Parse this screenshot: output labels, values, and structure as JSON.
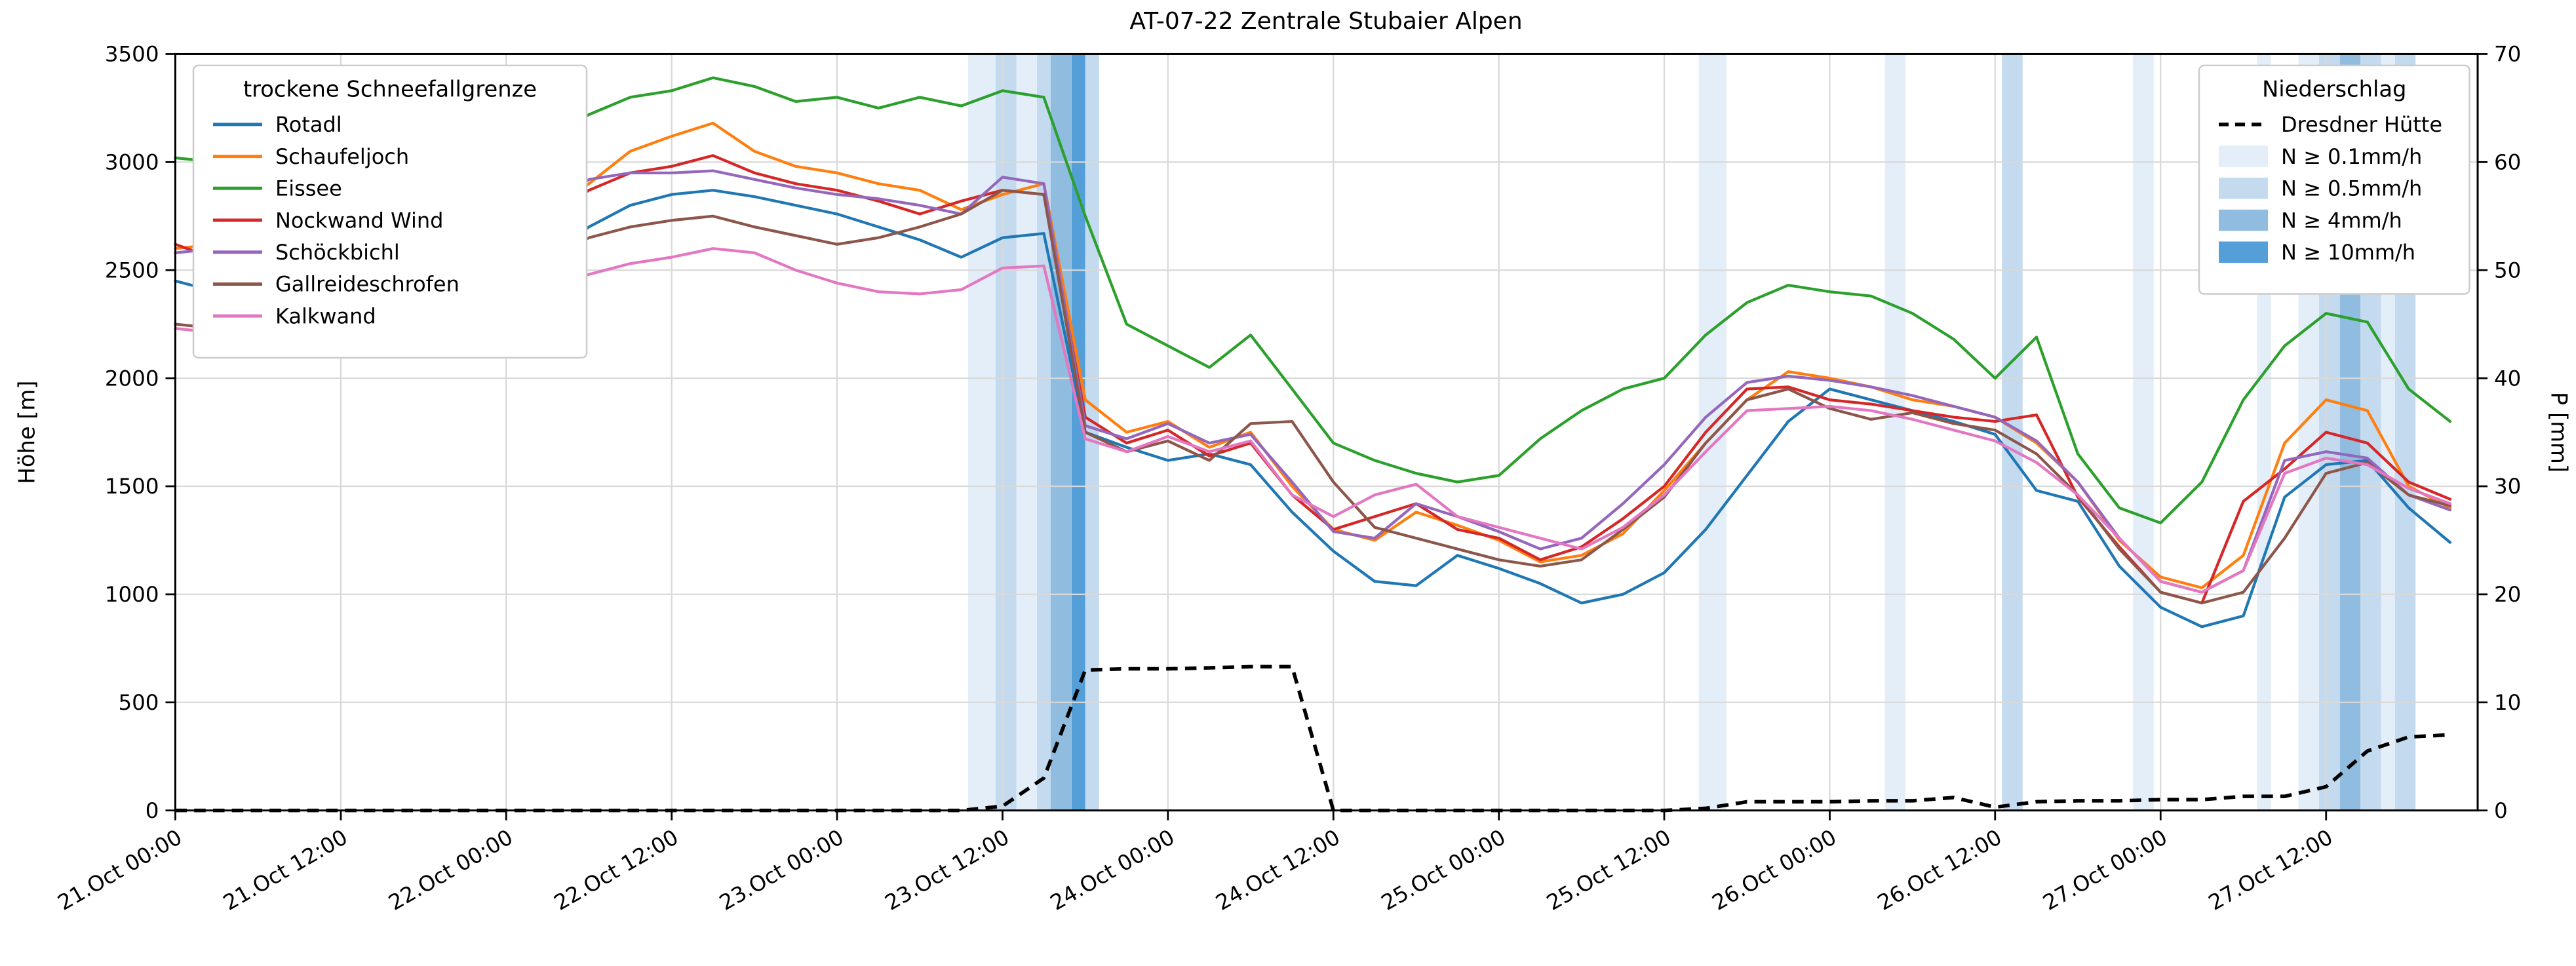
{
  "title": "AT-07-22 Zentrale Stubaier Alpen",
  "axes": {
    "x": {
      "tick_hours": [
        0,
        12,
        24,
        36,
        48,
        60,
        72,
        84,
        96,
        108,
        120,
        132,
        144,
        156
      ],
      "tick_labels": [
        "21.Oct 00:00",
        "21.Oct 12:00",
        "22.Oct 00:00",
        "22.Oct 12:00",
        "23.Oct 00:00",
        "23.Oct 12:00",
        "24.Oct 00:00",
        "24.Oct 12:00",
        "25.Oct 00:00",
        "25.Oct 12:00",
        "26.Oct 00:00",
        "26.Oct 12:00",
        "27.Oct 00:00",
        "27.Oct 12:00"
      ],
      "range_hours": [
        0,
        167
      ]
    },
    "y_left": {
      "label": "Höhe [m]",
      "min": 0,
      "max": 3500,
      "ticks": [
        0,
        500,
        1000,
        1500,
        2000,
        2500,
        3000,
        3500
      ]
    },
    "y_right": {
      "label": "P [mm]",
      "min": 0,
      "max": 70,
      "ticks": [
        0,
        10,
        20,
        30,
        40,
        50,
        60,
        70
      ]
    }
  },
  "legend_left": {
    "title": "trockene Schneefallgrenze"
  },
  "legend_right": {
    "title": "Niederschlag",
    "line_label": "Dresdner Hütte",
    "band_labels": [
      "N ≥ 0.1mm/h",
      "N ≥ 0.5mm/h",
      "N ≥ 4mm/h",
      "N ≥ 10mm/h"
    ],
    "band_levels": [
      "0.1",
      "0.5",
      "4",
      "10"
    ]
  },
  "chart_data": {
    "type": "line",
    "x_unit": "hours since 21.Oct 00:00",
    "x_hours": [
      0,
      3,
      6,
      9,
      12,
      15,
      18,
      21,
      24,
      27,
      30,
      33,
      36,
      39,
      42,
      45,
      48,
      51,
      54,
      57,
      60,
      63,
      66,
      69,
      72,
      75,
      78,
      81,
      84,
      87,
      90,
      93,
      96,
      99,
      102,
      105,
      108,
      111,
      114,
      117,
      120,
      123,
      126,
      129,
      132,
      135,
      138,
      141,
      144,
      147,
      150,
      153,
      156,
      159,
      162,
      165
    ],
    "series": [
      {
        "name": "Rotadl",
        "color": "#1f77b4",
        "values": [
          2450,
          2400,
          2480,
          2350,
          2360,
          2400,
          2450,
          2430,
          2470,
          2560,
          2700,
          2800,
          2850,
          2870,
          2840,
          2800,
          2760,
          2700,
          2640,
          2560,
          2650,
          2670,
          1750,
          1680,
          1620,
          1650,
          1600,
          1380,
          1200,
          1060,
          1040,
          1180,
          1120,
          1050,
          960,
          1000,
          1100,
          1300,
          1550,
          1800,
          1950,
          1900,
          1850,
          1800,
          1740,
          1480,
          1430,
          1130,
          940,
          850,
          900,
          1450,
          1600,
          1620,
          1400,
          1240
        ]
      },
      {
        "name": "Schaufeljoch",
        "color": "#ff7f0e",
        "values": [
          2600,
          2620,
          2580,
          2550,
          2560,
          2600,
          2620,
          2600,
          2650,
          2750,
          2900,
          3050,
          3120,
          3180,
          3050,
          2980,
          2950,
          2900,
          2870,
          2780,
          2850,
          2900,
          1900,
          1750,
          1800,
          1680,
          1750,
          1500,
          1300,
          1250,
          1380,
          1320,
          1250,
          1150,
          1180,
          1280,
          1480,
          1700,
          1900,
          2030,
          2000,
          1960,
          1900,
          1870,
          1820,
          1700,
          1520,
          1250,
          1080,
          1030,
          1180,
          1700,
          1900,
          1850,
          1500,
          1400
        ]
      },
      {
        "name": "Eissee",
        "color": "#2ca02c",
        "values": [
          3020,
          3000,
          2970,
          3060,
          3000,
          2950,
          3000,
          2960,
          3050,
          3120,
          3220,
          3300,
          3330,
          3390,
          3350,
          3280,
          3300,
          3250,
          3300,
          3260,
          3330,
          3300,
          2750,
          2250,
          2150,
          2050,
          2200,
          1950,
          1700,
          1620,
          1560,
          1520,
          1550,
          1720,
          1850,
          1950,
          2000,
          2200,
          2350,
          2430,
          2400,
          2380,
          2300,
          2180,
          2000,
          2190,
          1650,
          1400,
          1330,
          1520,
          1900,
          2150,
          2300,
          2260,
          1950,
          1800
        ]
      },
      {
        "name": "Nockwand Wind",
        "color": "#d62728",
        "values": [
          2620,
          2550,
          2450,
          2400,
          2450,
          2500,
          2550,
          2520,
          2650,
          2750,
          2870,
          2950,
          2980,
          3030,
          2950,
          2900,
          2870,
          2820,
          2760,
          2820,
          2870,
          2850,
          1820,
          1700,
          1760,
          1640,
          1700,
          1460,
          1300,
          1360,
          1420,
          1300,
          1260,
          1160,
          1220,
          1350,
          1500,
          1750,
          1950,
          1960,
          1900,
          1880,
          1850,
          1820,
          1800,
          1830,
          1450,
          1220,
          1010,
          960,
          1430,
          1580,
          1750,
          1700,
          1520,
          1440
        ]
      },
      {
        "name": "Schöckbichl",
        "color": "#9467bd",
        "values": [
          2580,
          2600,
          2550,
          2500,
          2520,
          2560,
          2600,
          2580,
          2650,
          2780,
          2920,
          2950,
          2950,
          2960,
          2920,
          2880,
          2850,
          2830,
          2800,
          2760,
          2930,
          2900,
          1780,
          1720,
          1790,
          1700,
          1740,
          1520,
          1290,
          1260,
          1420,
          1360,
          1290,
          1210,
          1260,
          1420,
          1600,
          1820,
          1980,
          2010,
          1990,
          1960,
          1920,
          1870,
          1820,
          1710,
          1520,
          1260,
          1060,
          1010,
          1110,
          1620,
          1660,
          1630,
          1460,
          1390
        ]
      },
      {
        "name": "Gallreideschrofen",
        "color": "#8c564b",
        "values": [
          2250,
          2230,
          2280,
          2300,
          2320,
          2350,
          2380,
          2400,
          2450,
          2550,
          2650,
          2700,
          2730,
          2750,
          2700,
          2660,
          2620,
          2650,
          2700,
          2760,
          2870,
          2850,
          1750,
          1660,
          1710,
          1620,
          1790,
          1800,
          1520,
          1310,
          1260,
          1210,
          1160,
          1130,
          1160,
          1300,
          1450,
          1700,
          1900,
          1950,
          1860,
          1810,
          1840,
          1790,
          1760,
          1650,
          1460,
          1210,
          1010,
          960,
          1010,
          1260,
          1560,
          1610,
          1460,
          1410
        ]
      },
      {
        "name": "Kalkwand",
        "color": "#e377c2",
        "values": [
          2230,
          2210,
          2260,
          2230,
          2280,
          2320,
          2350,
          2340,
          2360,
          2420,
          2480,
          2530,
          2560,
          2600,
          2580,
          2500,
          2440,
          2400,
          2390,
          2410,
          2510,
          2520,
          1720,
          1660,
          1730,
          1660,
          1710,
          1460,
          1360,
          1460,
          1510,
          1360,
          1310,
          1260,
          1210,
          1310,
          1460,
          1660,
          1850,
          1860,
          1870,
          1850,
          1810,
          1760,
          1710,
          1610,
          1460,
          1260,
          1060,
          1010,
          1110,
          1560,
          1630,
          1600,
          1490,
          1420
        ]
      }
    ],
    "precip_line": {
      "name": "Dresdner Hütte",
      "color": "#000000",
      "style": "dashed",
      "axis": "right",
      "values": [
        0,
        0,
        0,
        0,
        0,
        0,
        0,
        0,
        0,
        0,
        0,
        0,
        0,
        0,
        0,
        0,
        0,
        0,
        0,
        0,
        0.4,
        3,
        13,
        13.1,
        13.1,
        13.2,
        13.3,
        13.3,
        0,
        0,
        0,
        0,
        0,
        0,
        0,
        0,
        0,
        0.2,
        0.8,
        0.8,
        0.8,
        0.9,
        0.9,
        1.2,
        0.3,
        0.8,
        0.9,
        0.9,
        1.0,
        1.0,
        1.3,
        1.3,
        2.2,
        5.5,
        6.8,
        7.0
      ]
    },
    "precip_spans": [
      {
        "start_h": 57.5,
        "end_h": 59.5,
        "level": "0.1"
      },
      {
        "start_h": 59.5,
        "end_h": 61.0,
        "level": "0.5"
      },
      {
        "start_h": 61.0,
        "end_h": 62.5,
        "level": "0.1"
      },
      {
        "start_h": 62.5,
        "end_h": 63.5,
        "level": "0.5"
      },
      {
        "start_h": 63.5,
        "end_h": 65.0,
        "level": "4"
      },
      {
        "start_h": 65.0,
        "end_h": 66.0,
        "level": "10"
      },
      {
        "start_h": 66.0,
        "end_h": 67.0,
        "level": "0.5"
      },
      {
        "start_h": 110.5,
        "end_h": 112.5,
        "level": "0.1"
      },
      {
        "start_h": 124.0,
        "end_h": 125.5,
        "level": "0.1"
      },
      {
        "start_h": 132.5,
        "end_h": 134.0,
        "level": "0.5"
      },
      {
        "start_h": 142.0,
        "end_h": 143.5,
        "level": "0.1"
      },
      {
        "start_h": 151.0,
        "end_h": 152.0,
        "level": "0.1"
      },
      {
        "start_h": 154.0,
        "end_h": 155.5,
        "level": "0.1"
      },
      {
        "start_h": 155.5,
        "end_h": 157.0,
        "level": "0.5"
      },
      {
        "start_h": 157.0,
        "end_h": 158.5,
        "level": "4"
      },
      {
        "start_h": 158.5,
        "end_h": 160.0,
        "level": "0.5"
      },
      {
        "start_h": 160.0,
        "end_h": 161.0,
        "level": "0.1"
      },
      {
        "start_h": 161.0,
        "end_h": 162.5,
        "level": "0.5"
      }
    ],
    "span_colors": {
      "0.1": "#e3eef9",
      "0.5": "#c3daef",
      "4": "#8fbcdf",
      "10": "#549fd7"
    },
    "grid": true,
    "legend_positions": [
      "upper left",
      "upper right"
    ]
  }
}
